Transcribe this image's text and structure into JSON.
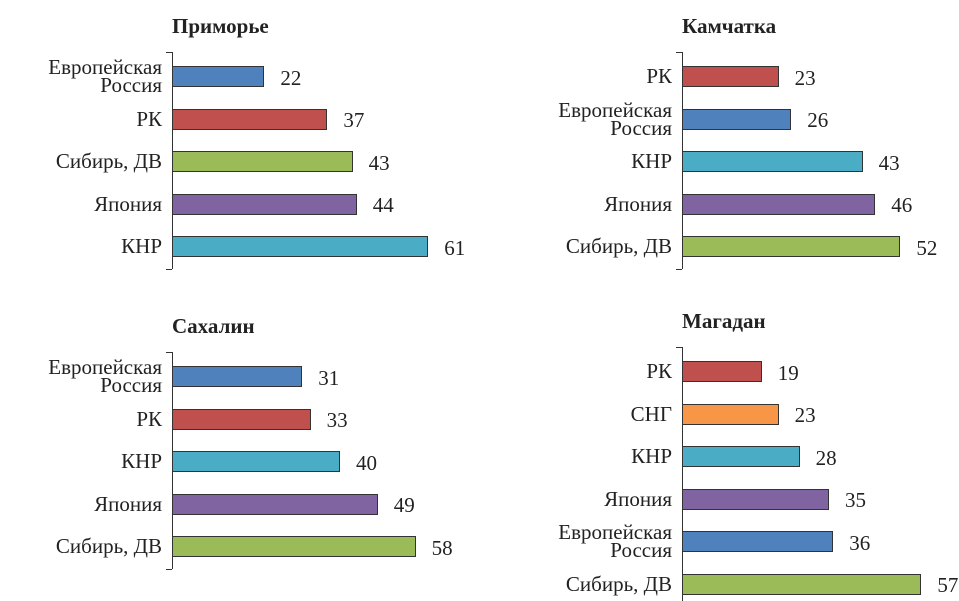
{
  "chart_data": [
    {
      "type": "bar",
      "orientation": "horizontal",
      "title": "Приморье",
      "categories": [
        "Европейская Россия",
        "РК",
        "Сибирь, ДВ",
        "Япония",
        "КНР"
      ],
      "values": [
        22,
        37,
        43,
        44,
        61
      ],
      "colors": [
        "#4f81bd",
        "#c0504d",
        "#9bbb59",
        "#8064a2",
        "#4bacc6"
      ]
    },
    {
      "type": "bar",
      "orientation": "horizontal",
      "title": "Камчатка",
      "categories": [
        "РК",
        "Европейская Россия",
        "КНР",
        "Япония",
        "Сибирь, ДВ"
      ],
      "values": [
        23,
        26,
        43,
        46,
        52
      ],
      "colors": [
        "#c0504d",
        "#4f81bd",
        "#4bacc6",
        "#8064a2",
        "#9bbb59"
      ]
    },
    {
      "type": "bar",
      "orientation": "horizontal",
      "title": "Сахалин",
      "categories": [
        "Европейская Россия",
        "РК",
        "КНР",
        "Япония",
        "Сибирь, ДВ"
      ],
      "values": [
        31,
        33,
        40,
        49,
        58
      ],
      "colors": [
        "#4f81bd",
        "#c0504d",
        "#4bacc6",
        "#8064a2",
        "#9bbb59"
      ]
    },
    {
      "type": "bar",
      "orientation": "horizontal",
      "title": "Магадан",
      "categories": [
        "РК",
        "СНГ",
        "КНР",
        "Япония",
        "Европейская Россия",
        "Сибирь, ДВ"
      ],
      "values": [
        19,
        23,
        28,
        35,
        36,
        57
      ],
      "colors": [
        "#c0504d",
        "#f79646",
        "#4bacc6",
        "#8064a2",
        "#4f81bd",
        "#9bbb59"
      ]
    }
  ]
}
